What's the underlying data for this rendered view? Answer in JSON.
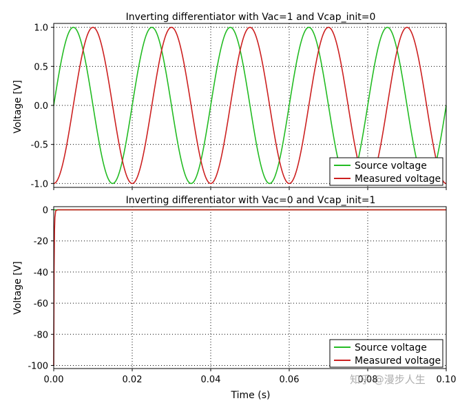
{
  "watermark": "知乎 @漫步人生",
  "colors": {
    "source": "#22bb22",
    "measured": "#cc1f1f"
  },
  "chart_data": [
    {
      "type": "line",
      "title": "Inverting differentiator with Vac=1 and Vcap_init=0",
      "xlabel": "",
      "ylabel": "Voltage [V]",
      "xlim": [
        0,
        0.1
      ],
      "ylim": [
        -1.05,
        1.05
      ],
      "yticks": [
        -1.0,
        -0.5,
        0.0,
        0.5,
        1.0
      ],
      "ytick_labels": [
        "-1.0",
        "-0.5",
        "0.0",
        "0.5",
        "1.0"
      ],
      "xticks": [
        0,
        0.02,
        0.04,
        0.06,
        0.08,
        0.1
      ],
      "xtick_labels": [],
      "grid": true,
      "legend_position": "bottom-right",
      "series": [
        {
          "name": "Source voltage",
          "color": "#22bb22",
          "x": [
            0,
            0.0025,
            0.005,
            0.0075,
            0.01,
            0.0125,
            0.015,
            0.0175,
            0.02,
            0.0225,
            0.025,
            0.0275,
            0.03,
            0.0325,
            0.035,
            0.0375,
            0.04,
            0.0425,
            0.045,
            0.0475,
            0.05,
            0.0525,
            0.055,
            0.0575,
            0.06,
            0.0625,
            0.065,
            0.0675,
            0.07,
            0.0725,
            0.075,
            0.0775,
            0.08,
            0.0825,
            0.085,
            0.0875,
            0.09,
            0.0925,
            0.095,
            0.0975,
            0.1
          ],
          "y": [
            0,
            0.707,
            1,
            0.707,
            0,
            -0.707,
            -1,
            -0.707,
            0,
            0.707,
            1,
            0.707,
            0,
            -0.707,
            -1,
            -0.707,
            0,
            0.707,
            1,
            0.707,
            0,
            -0.707,
            -1,
            -0.707,
            0,
            0.707,
            1,
            0.707,
            0,
            -0.707,
            -1,
            -0.707,
            0,
            0.707,
            1,
            0.707,
            0,
            -0.707,
            -1,
            -0.707,
            0
          ]
        },
        {
          "name": "Measured voltage",
          "color": "#cc1f1f",
          "x": [
            0,
            0.0025,
            0.005,
            0.0075,
            0.01,
            0.0125,
            0.015,
            0.0175,
            0.02,
            0.0225,
            0.025,
            0.0275,
            0.03,
            0.0325,
            0.035,
            0.0375,
            0.04,
            0.0425,
            0.045,
            0.0475,
            0.05,
            0.0525,
            0.055,
            0.0575,
            0.06,
            0.0625,
            0.065,
            0.0675,
            0.07,
            0.0725,
            0.075,
            0.0775,
            0.08,
            0.0825,
            0.085,
            0.0875,
            0.09,
            0.0925,
            0.095,
            0.0975,
            0.1
          ],
          "y": [
            -1,
            -0.707,
            0,
            0.707,
            1,
            0.707,
            0,
            -0.707,
            -1,
            -0.707,
            0,
            0.707,
            1,
            0.707,
            0,
            -0.707,
            -1,
            -0.707,
            0,
            0.707,
            1,
            0.707,
            0,
            -0.707,
            -1,
            -0.707,
            0,
            0.707,
            1,
            0.707,
            0,
            -0.707,
            -1,
            -0.707,
            0,
            0.707,
            1,
            0.707,
            0,
            -0.707,
            -1
          ]
        }
      ]
    },
    {
      "type": "line",
      "title": "Inverting differentiator with Vac=0 and Vcap_init=1",
      "xlabel": "Time (s)",
      "ylabel": "Voltage [V]",
      "xlim": [
        0,
        0.1
      ],
      "ylim": [
        -102,
        2
      ],
      "yticks": [
        -100,
        -80,
        -60,
        -40,
        -20,
        0
      ],
      "ytick_labels": [
        "-100",
        "-80",
        "-60",
        "-40",
        "-20",
        "0"
      ],
      "xticks": [
        0,
        0.02,
        0.04,
        0.06,
        0.08,
        0.1
      ],
      "xtick_labels": [
        "0.00",
        "0.02",
        "0.04",
        "0.06",
        "0.08",
        "0.10"
      ],
      "grid": true,
      "legend_position": "bottom-right",
      "series": [
        {
          "name": "Source voltage",
          "color": "#22bb22",
          "x": [
            0,
            0.1
          ],
          "y": [
            0,
            0
          ]
        },
        {
          "name": "Measured voltage",
          "color": "#cc1f1f",
          "x": [
            0,
            0.0001,
            0.0002,
            0.0003,
            0.0005,
            0.001,
            0.1
          ],
          "y": [
            -100,
            -37,
            -13.5,
            -5,
            -0.7,
            0,
            0
          ]
        }
      ]
    }
  ]
}
